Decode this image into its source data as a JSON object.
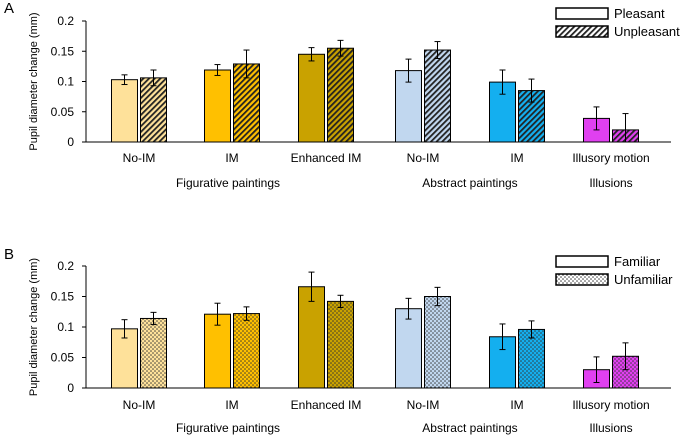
{
  "chart_data": [
    {
      "type": "bar",
      "panel_label": "A",
      "ylabel": "Pupil diameter change (mm)",
      "ylim": [
        0,
        0.2
      ],
      "yticks": [
        "0",
        "0.05",
        "0.1",
        "0.15",
        "0.2"
      ],
      "ytick_values": [
        0,
        0.05,
        0.1,
        0.15,
        0.2
      ],
      "categories": [
        "No-IM",
        "IM",
        "Enhanced IM",
        "No-IM",
        "IM",
        "Illusory motion"
      ],
      "groups": [
        {
          "label": "Figurative paintings",
          "categories": [
            0,
            1,
            2
          ]
        },
        {
          "label": "Abstract paintings",
          "categories": [
            3,
            4
          ]
        },
        {
          "label": "Illusions",
          "categories": [
            5
          ]
        }
      ],
      "category_colors": [
        "#FEE19A",
        "#FFC000",
        "#C9A200",
        "#C1D7EF",
        "#14AFEF",
        "#E040F0"
      ],
      "series": [
        {
          "name": "Pleasant",
          "pattern": "solid",
          "values": [
            0.103,
            0.119,
            0.145,
            0.118,
            0.099,
            0.039
          ],
          "errors": [
            0.008,
            0.009,
            0.011,
            0.019,
            0.02,
            0.019
          ]
        },
        {
          "name": "Unpleasant",
          "pattern": "hatch",
          "values": [
            0.106,
            0.129,
            0.155,
            0.152,
            0.085,
            0.02
          ],
          "errors": [
            0.013,
            0.023,
            0.013,
            0.014,
            0.019,
            0.027
          ]
        }
      ],
      "legend": {
        "position": "top-right",
        "entries": [
          "Pleasant",
          "Unpleasant"
        ]
      }
    },
    {
      "type": "bar",
      "panel_label": "B",
      "ylabel": "Pupil diameter change (mm)",
      "ylim": [
        0,
        0.2
      ],
      "yticks": [
        "0",
        "0.05",
        "0.1",
        "0.15",
        "0.2"
      ],
      "ytick_values": [
        0,
        0.05,
        0.1,
        0.15,
        0.2
      ],
      "categories": [
        "No-IM",
        "IM",
        "Enhanced IM",
        "No-IM",
        "IM",
        "Illusory motion"
      ],
      "groups": [
        {
          "label": "Figurative paintings",
          "categories": [
            0,
            1,
            2
          ]
        },
        {
          "label": "Abstract paintings",
          "categories": [
            3,
            4
          ]
        },
        {
          "label": "Illusions",
          "categories": [
            5
          ]
        }
      ],
      "category_colors": [
        "#FEE19A",
        "#FFC000",
        "#C9A200",
        "#C1D7EF",
        "#14AFEF",
        "#E040F0"
      ],
      "series": [
        {
          "name": "Familiar",
          "pattern": "solid",
          "values": [
            0.097,
            0.121,
            0.166,
            0.13,
            0.084,
            0.03
          ],
          "errors": [
            0.015,
            0.018,
            0.024,
            0.017,
            0.021,
            0.021
          ]
        },
        {
          "name": "Unfamiliar",
          "pattern": "dots",
          "values": [
            0.114,
            0.122,
            0.142,
            0.15,
            0.096,
            0.052
          ],
          "errors": [
            0.01,
            0.011,
            0.01,
            0.015,
            0.014,
            0.022
          ]
        }
      ],
      "legend": {
        "position": "top-right",
        "entries": [
          "Familiar",
          "Unfamiliar"
        ]
      }
    }
  ]
}
